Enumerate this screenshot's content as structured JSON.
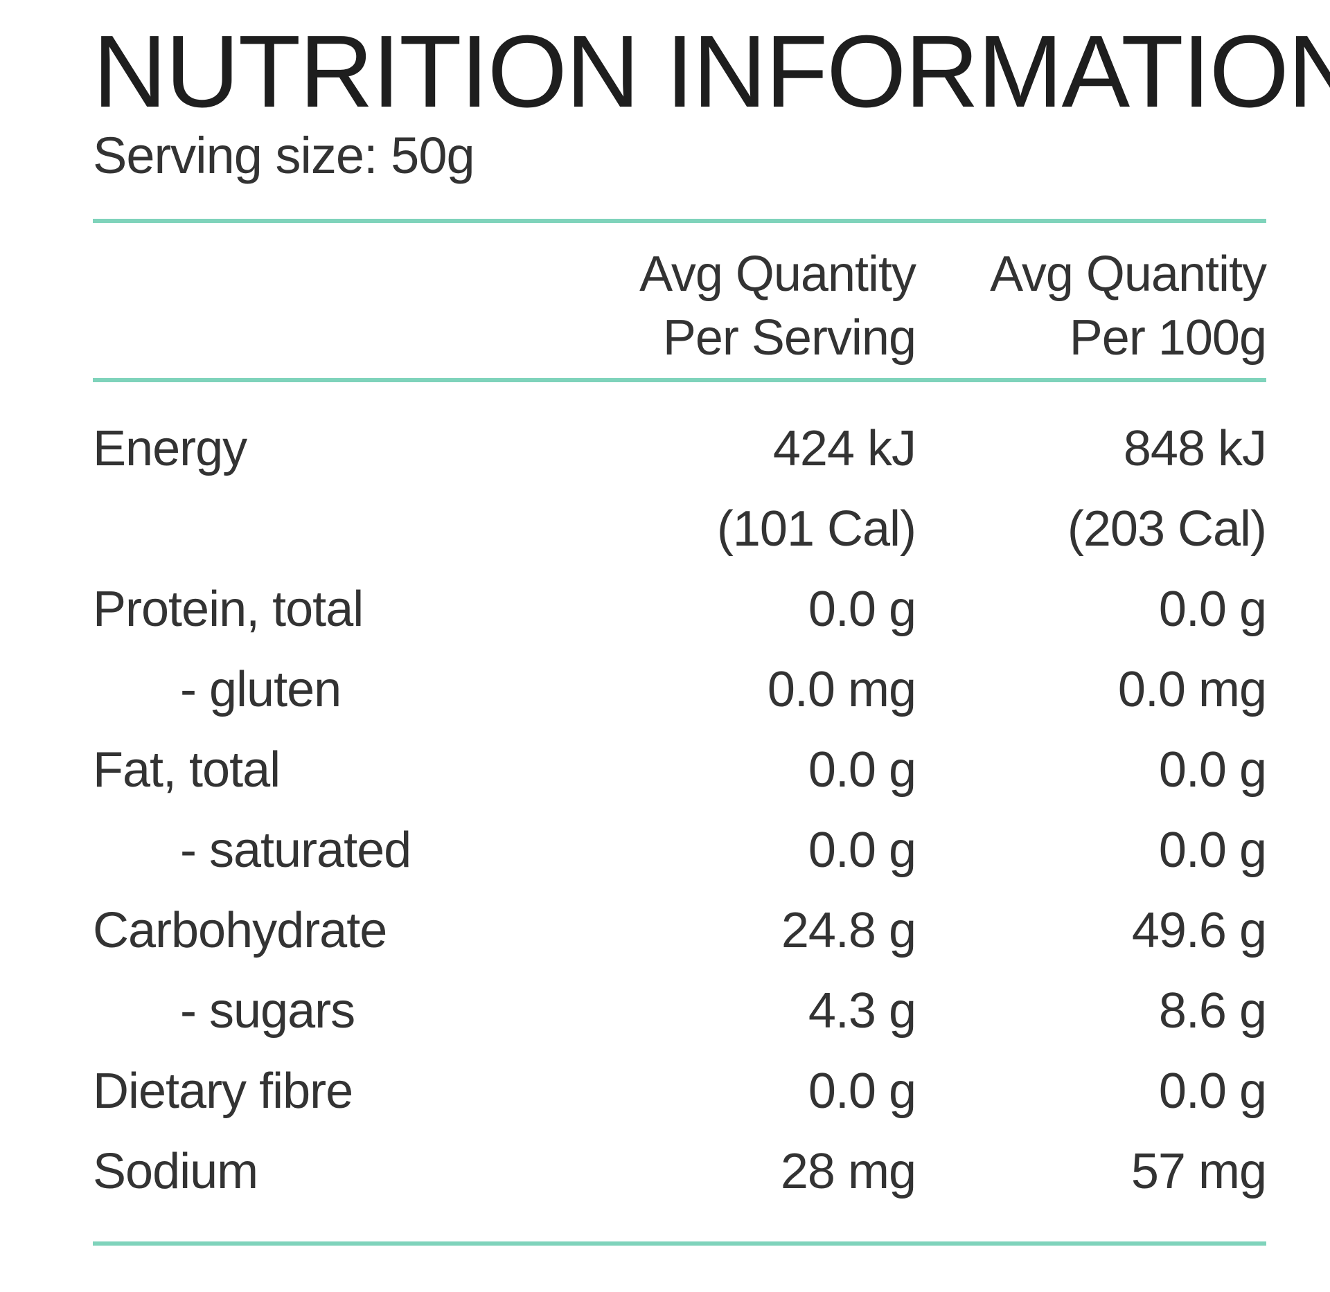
{
  "title": "NUTRITION INFORMATION",
  "serving_size": "Serving size: 50g",
  "columns": [
    {
      "line1": "Avg Quantity",
      "line2": "Per Serving"
    },
    {
      "line1": "Avg Quantity",
      "line2": "Per 100g"
    }
  ],
  "rows": [
    {
      "label": "Energy",
      "per_serving": "424 kJ",
      "per_100g": "848 kJ"
    },
    {
      "label": "",
      "per_serving": "(101 Cal)",
      "per_100g": "(203 Cal)"
    },
    {
      "label": "Protein, total",
      "per_serving": "0.0 g",
      "per_100g": "0.0 g"
    },
    {
      "label": "- gluten",
      "per_serving": "0.0 mg",
      "per_100g": "0.0 mg"
    },
    {
      "label": "Fat, total",
      "per_serving": "0.0 g",
      "per_100g": "0.0 g"
    },
    {
      "label": "- saturated",
      "per_serving": "0.0 g",
      "per_100g": "0.0 g"
    },
    {
      "label": "Carbohydrate",
      "per_serving": "24.8 g",
      "per_100g": "49.6 g"
    },
    {
      "label": "- sugars",
      "per_serving": "4.3 g",
      "per_100g": "8.6 g"
    },
    {
      "label": "Dietary fibre",
      "per_serving": "0.0 g",
      "per_100g": "0.0 g"
    },
    {
      "label": "Sodium",
      "per_serving": "28 mg",
      "per_100g": "57 mg"
    }
  ],
  "colors": {
    "rule": "#7fd3bb",
    "text": "#333333"
  }
}
